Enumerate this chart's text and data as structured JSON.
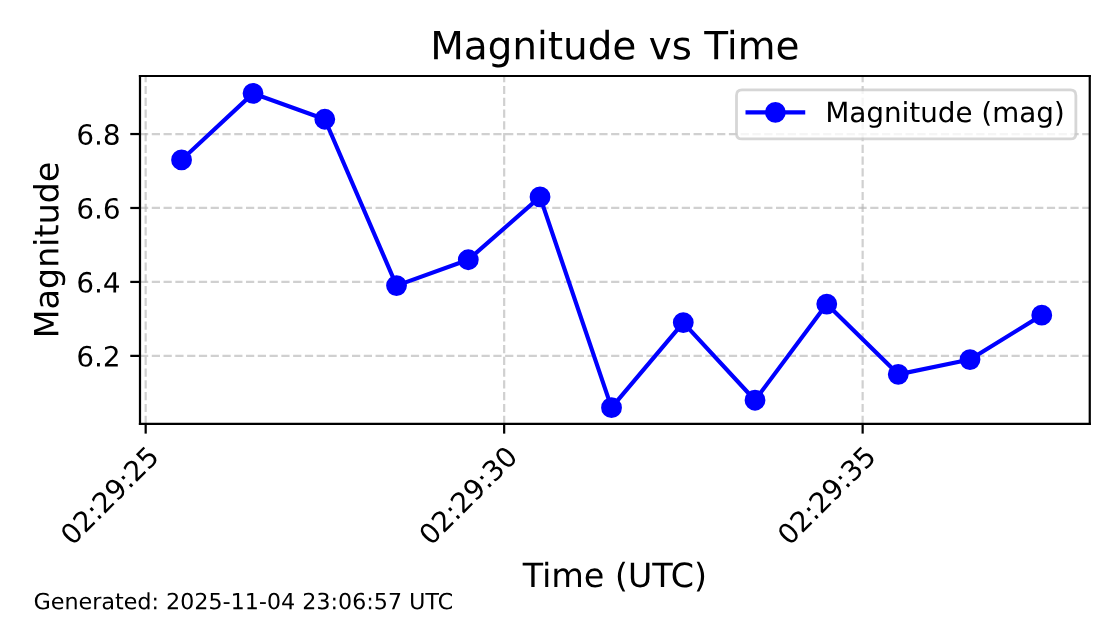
{
  "chart_data": {
    "type": "line",
    "title": "Magnitude vs Time",
    "xlabel": "Time (UTC)",
    "ylabel": "Magnitude",
    "annotations": [
      "Generated: 2025-11-04 23:06:57 UTC"
    ],
    "x": [
      2.490417,
      2.490694,
      2.490972,
      2.49125,
      2.491528,
      2.491806,
      2.492083,
      2.492361,
      2.492639,
      2.492917,
      2.493194,
      2.493472,
      2.49375
    ],
    "series": [
      {
        "name": "Magnitude (mag)",
        "color": "#0000ff",
        "values": [
          6.73,
          6.91,
          6.84,
          6.39,
          6.46,
          6.63,
          6.06,
          6.29,
          6.08,
          6.34,
          6.15,
          6.19,
          6.31
        ]
      }
    ],
    "xlim": [
      2.490256,
      2.493936
    ],
    "xticks": [
      {
        "value": 2.490278,
        "label": "02:29:25"
      },
      {
        "value": 2.491667,
        "label": "02:29:30"
      },
      {
        "value": 2.493056,
        "label": "02:29:35"
      }
    ],
    "ylim": [
      6.016,
      6.957
    ],
    "yticks": [
      6.2,
      6.4,
      6.6,
      6.8
    ],
    "grid": true,
    "legend": "top right",
    "marker": "circle",
    "line_style": "solid"
  }
}
